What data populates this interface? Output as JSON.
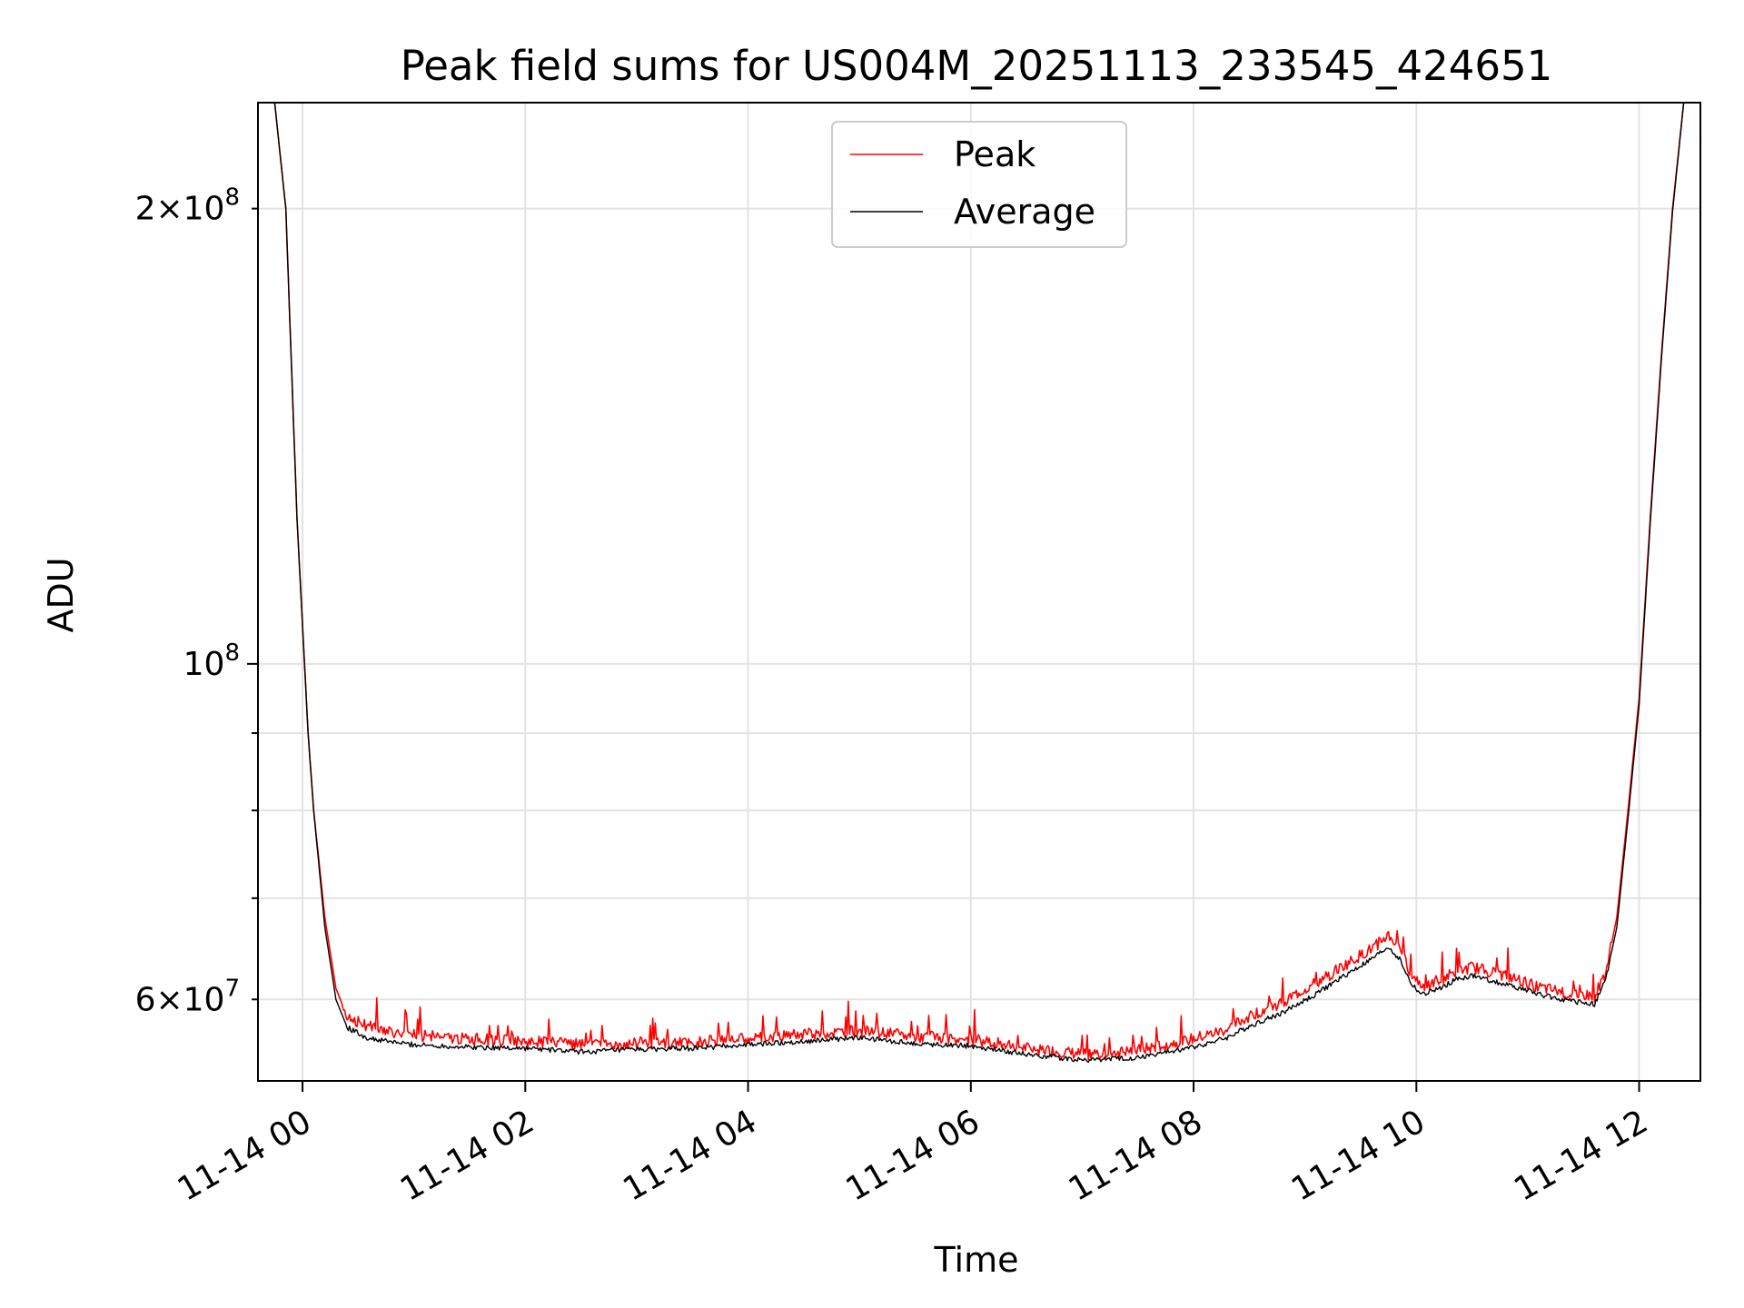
{
  "chart_data": {
    "type": "line",
    "title": "Peak field sums for US004M_20251113_233545_424651",
    "xlabel": "Time",
    "ylabel": "ADU",
    "yscale": "log",
    "grid": true,
    "legend_position": "top-center",
    "x_unit": "hours since 11-14 00:00",
    "xlim": [
      -0.4,
      12.55
    ],
    "ylim": [
      53000000,
      235000000
    ],
    "x_ticks": [
      {
        "value": 0,
        "label": "11-14 00"
      },
      {
        "value": 2,
        "label": "11-14 02"
      },
      {
        "value": 4,
        "label": "11-14 04"
      },
      {
        "value": 6,
        "label": "11-14 06"
      },
      {
        "value": 8,
        "label": "11-14 08"
      },
      {
        "value": 10,
        "label": "11-14 10"
      },
      {
        "value": 12,
        "label": "11-14 12"
      }
    ],
    "y_ticks_major": [
      {
        "value": 100000000,
        "base": "10",
        "exp": "8"
      }
    ],
    "y_ticks_labeled_minor": [
      {
        "value": 60000000,
        "mantissa": "6",
        "base": "10",
        "exp": "7"
      },
      {
        "value": 200000000,
        "mantissa": "2",
        "base": "10",
        "exp": "8"
      }
    ],
    "y_ticks_minor": [
      70000000,
      80000000,
      90000000
    ],
    "series": [
      {
        "name": "Peak",
        "color": "#ff0000",
        "x": [
          -0.4,
          -0.25,
          -0.15,
          -0.05,
          0.05,
          0.1,
          0.2,
          0.3,
          0.4,
          0.6,
          1.0,
          1.5,
          2.0,
          2.5,
          3.0,
          3.5,
          4.0,
          4.5,
          5.0,
          5.5,
          6.0,
          6.5,
          7.0,
          7.5,
          8.0,
          8.3,
          8.5,
          8.8,
          9.1,
          9.4,
          9.6,
          9.75,
          9.85,
          9.95,
          10.05,
          10.2,
          10.35,
          10.5,
          10.8,
          11.1,
          11.4,
          11.6,
          11.7,
          11.8,
          11.9,
          12.0,
          12.1,
          12.2,
          12.3,
          12.4,
          12.55
        ],
        "y": [
          235000000,
          235000000,
          200000000,
          125000000,
          90000000,
          80000000,
          68000000,
          61000000,
          58500000,
          57500000,
          56800000,
          56500000,
          56300000,
          56000000,
          56100000,
          56200000,
          56600000,
          56900000,
          57200000,
          56700000,
          56500000,
          55700000,
          55200000,
          55500000,
          56500000,
          57300000,
          58500000,
          59800000,
          61500000,
          63500000,
          64800000,
          66200000,
          64800000,
          62500000,
          61200000,
          61800000,
          62500000,
          63000000,
          62200000,
          61100000,
          60500000,
          60300000,
          62500000,
          68000000,
          80000000,
          95000000,
          125000000,
          160000000,
          200000000,
          235000000,
          235000000
        ]
      },
      {
        "name": "Average",
        "color": "#000000",
        "x": [
          -0.4,
          -0.25,
          -0.15,
          -0.05,
          0.05,
          0.1,
          0.2,
          0.3,
          0.4,
          0.6,
          1.0,
          1.5,
          2.0,
          2.5,
          3.0,
          3.5,
          4.0,
          4.5,
          5.0,
          5.5,
          6.0,
          6.5,
          7.0,
          7.5,
          8.0,
          8.3,
          8.5,
          8.8,
          9.1,
          9.4,
          9.6,
          9.75,
          9.85,
          9.95,
          10.05,
          10.2,
          10.35,
          10.5,
          10.8,
          11.1,
          11.4,
          11.6,
          11.7,
          11.8,
          11.9,
          12.0,
          12.1,
          12.2,
          12.3,
          12.4,
          12.55
        ],
        "y": [
          235000000,
          235000000,
          200000000,
          125000000,
          90000000,
          80000000,
          67000000,
          60000000,
          57500000,
          56500000,
          56000000,
          55800000,
          55700000,
          55400000,
          55600000,
          55700000,
          56000000,
          56300000,
          56600000,
          56100000,
          55900000,
          55200000,
          54700000,
          54900000,
          55800000,
          56600000,
          57600000,
          58800000,
          60500000,
          62500000,
          63800000,
          65000000,
          63800000,
          61500000,
          60400000,
          61000000,
          61800000,
          62200000,
          61400000,
          60500000,
          59800000,
          59600000,
          61800000,
          67000000,
          79000000,
          94000000,
          124000000,
          159000000,
          199000000,
          235000000,
          235000000
        ]
      }
    ]
  }
}
